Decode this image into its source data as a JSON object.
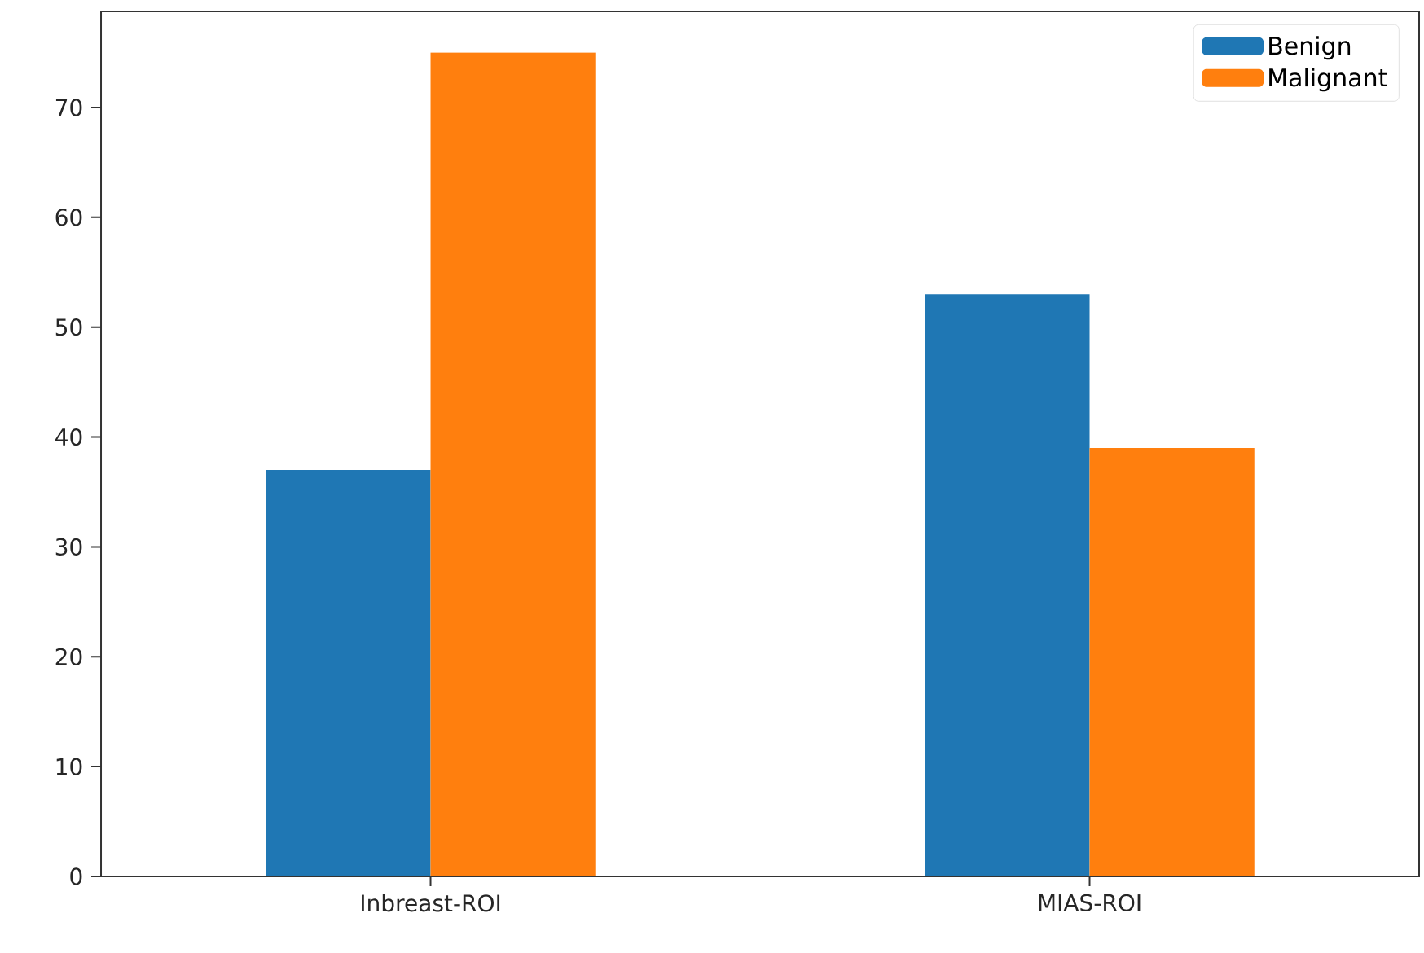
{
  "chart_data": {
    "type": "bar",
    "categories": [
      "Inbreast-ROI",
      "MIAS-ROI"
    ],
    "series": [
      {
        "name": "Benign",
        "color": "#1f77b4",
        "values": [
          37,
          53
        ]
      },
      {
        "name": "Malignant",
        "color": "#ff7f0e",
        "values": [
          75,
          39
        ]
      }
    ],
    "ylim": [
      0,
      78.75
    ],
    "yticks": [
      0,
      10,
      20,
      30,
      40,
      50,
      60,
      70
    ],
    "grid": false,
    "legend": "top right"
  }
}
